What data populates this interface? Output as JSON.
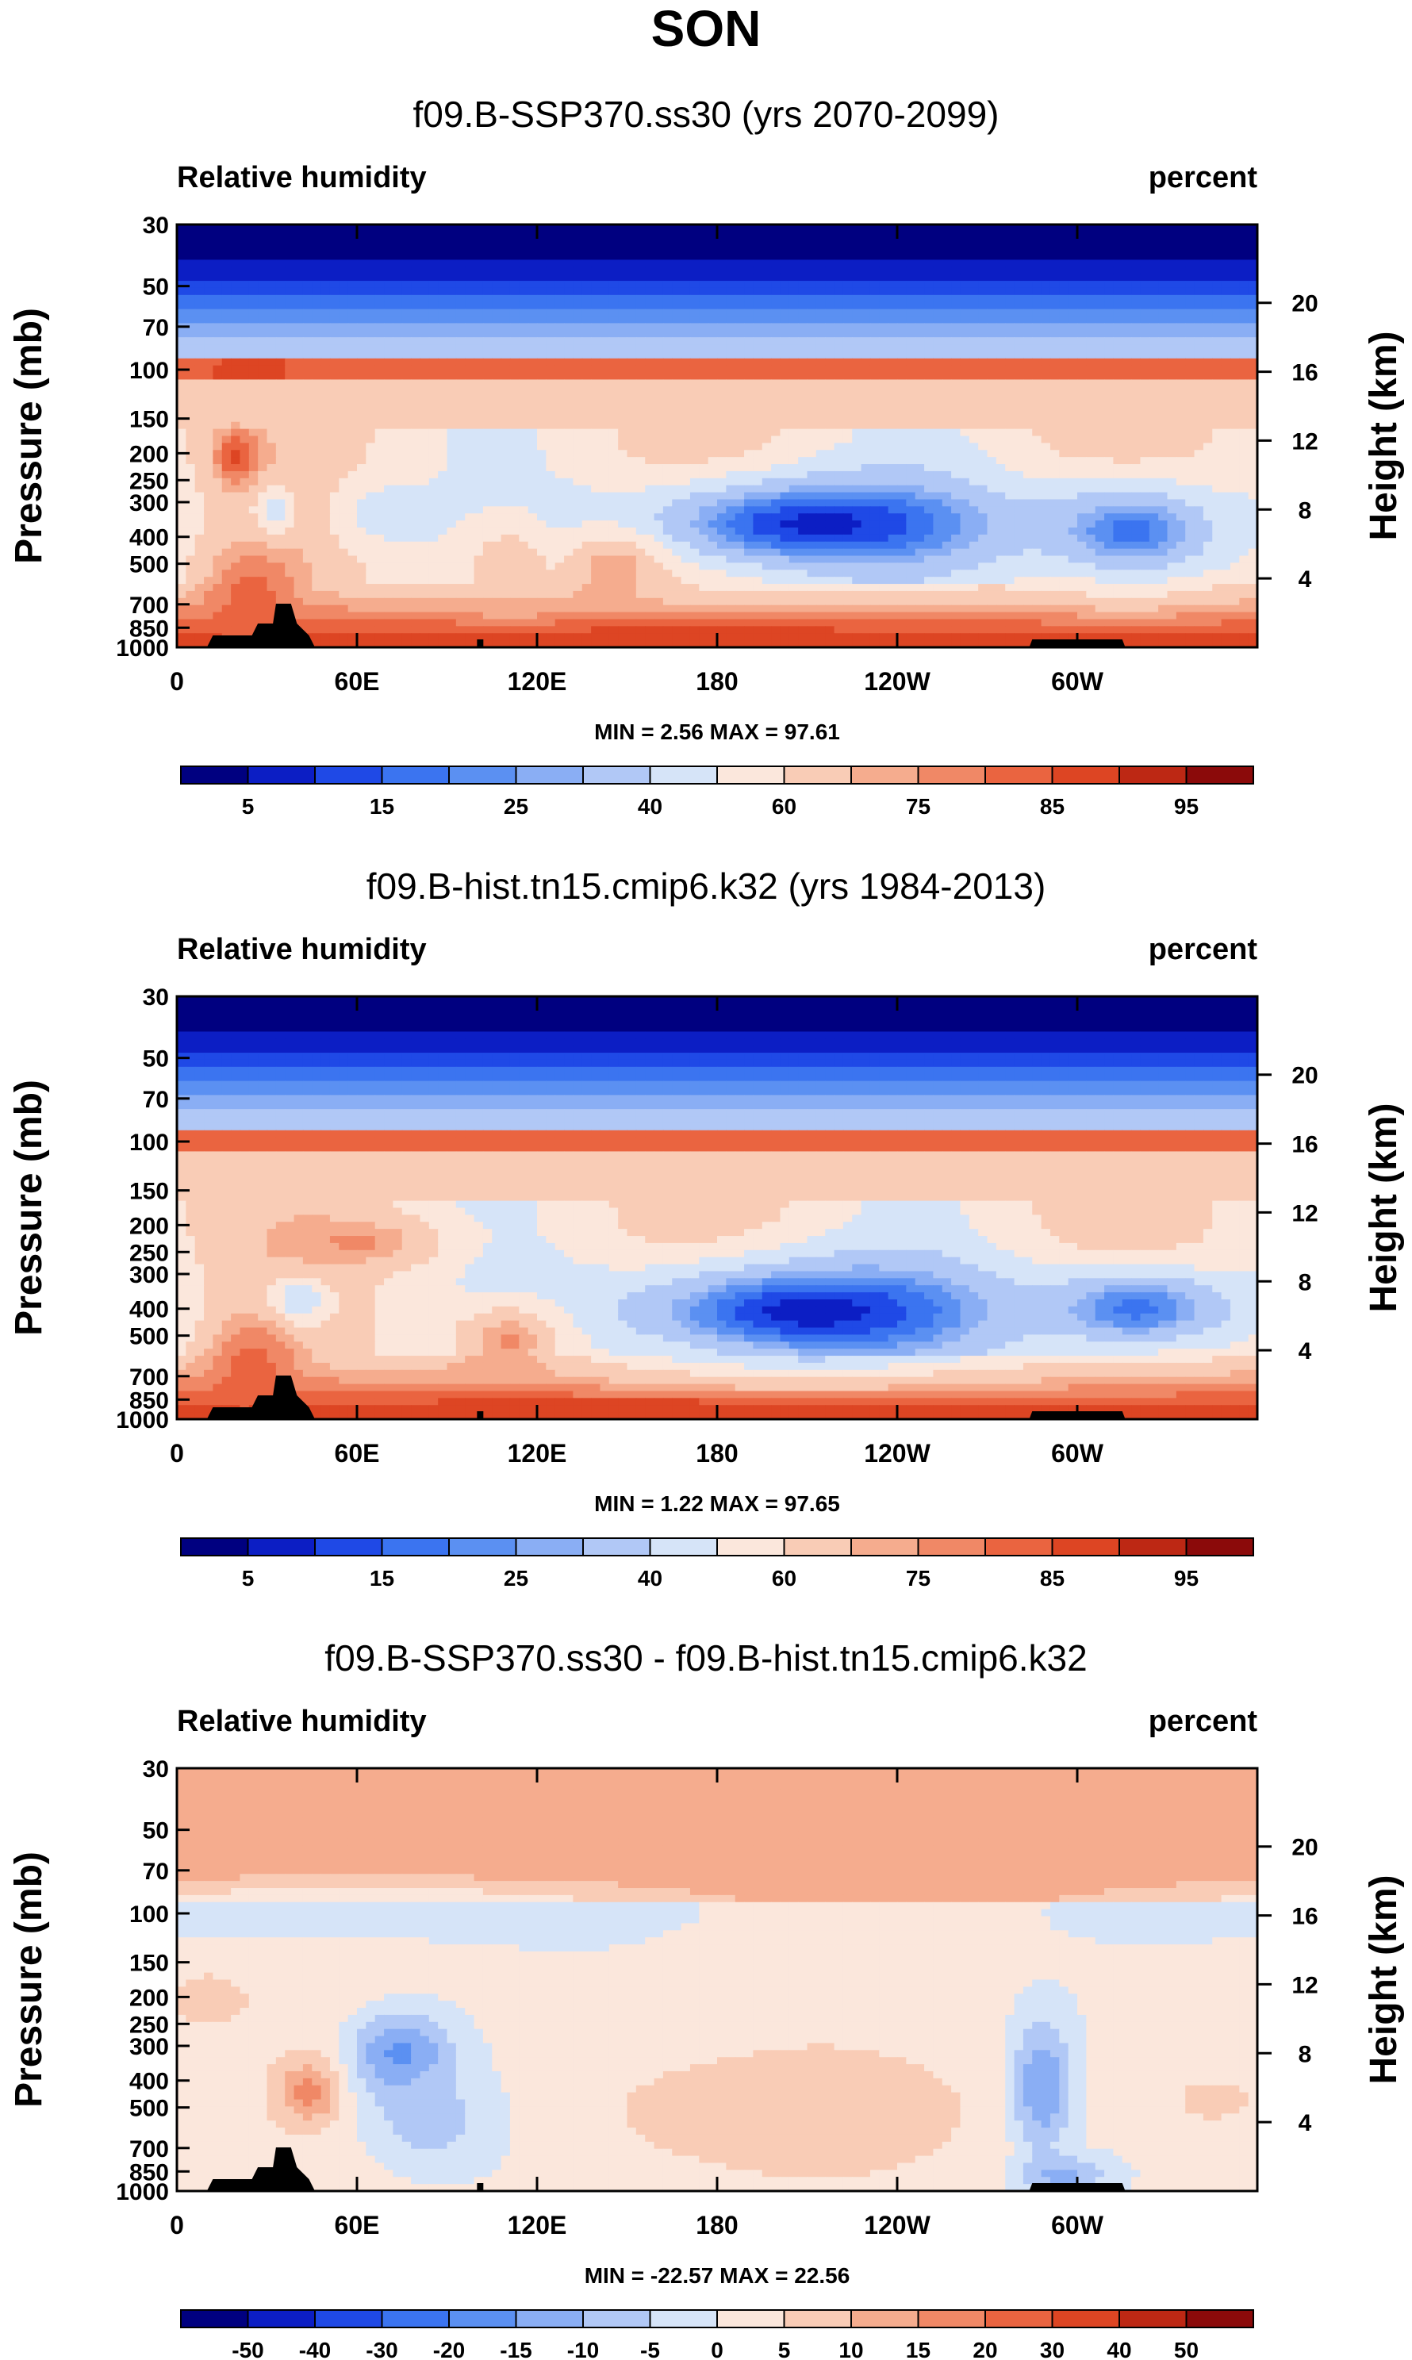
{
  "figure": {
    "title": "SON"
  },
  "colors": {
    "abs_scale": [
      "#000080",
      "#0c1ec4",
      "#1f49e6",
      "#3b74f0",
      "#5b90f2",
      "#8aaef4",
      "#b1c8f6",
      "#d6e4f8",
      "#fbe7dc",
      "#f9ccb6",
      "#f5ac8e",
      "#f08866",
      "#ea6440",
      "#dd4523",
      "#bd2814",
      "#8b0a0a"
    ],
    "diff_scale": [
      "#000080",
      "#0c1ec4",
      "#1f49e6",
      "#3b74f0",
      "#5b90f2",
      "#8aaef4",
      "#b1c8f6",
      "#d6e4f8",
      "#fbe7dc",
      "#f9ccb6",
      "#f5ac8e",
      "#f08866",
      "#ea6440",
      "#dd4523",
      "#bd2814",
      "#8b0a0a"
    ],
    "topography": "#000000"
  },
  "chart_data": [
    {
      "type": "heatmap",
      "title": "f09.B-SSP370.ss30 (yrs 2070-2099)",
      "left_label": "Relative humidity",
      "right_label": "percent",
      "ylabel": "Pressure (mb)",
      "y2label": "Height (km)",
      "xlabel": "",
      "x_ticks": [
        "0",
        "60E",
        "120E",
        "180",
        "120W",
        "60W"
      ],
      "x_tick_values": [
        0,
        60,
        120,
        180,
        240,
        300
      ],
      "xlim": [
        0,
        360
      ],
      "y_ticks": [
        "30",
        "50",
        "70",
        "100",
        "150",
        "200",
        "250",
        "300",
        "400",
        "500",
        "700",
        "850",
        "1000"
      ],
      "y_tick_values": [
        30,
        50,
        70,
        100,
        150,
        200,
        250,
        300,
        400,
        500,
        700,
        850,
        1000
      ],
      "ylim": [
        1000,
        30
      ],
      "y2_ticks": [
        "20",
        "16",
        "12",
        "8",
        "4"
      ],
      "y2_tick_values": [
        20,
        16,
        12,
        8,
        4
      ],
      "min_max_text": "MIN =   2.56  MAX =  97.61",
      "min": 2.56,
      "max": 97.61,
      "colorbar_labels": [
        "5",
        "15",
        "25",
        "40",
        "60",
        "75",
        "85",
        "95"
      ],
      "colorbar_levels": [
        5,
        10,
        15,
        20,
        25,
        30,
        40,
        50,
        60,
        70,
        75,
        80,
        85,
        90,
        95
      ],
      "features": [
        {
          "lon": 215,
          "p": 360,
          "value": 8,
          "lon_w": 46,
          "p_w": 120
        },
        {
          "lon": 318,
          "p": 380,
          "value": 18,
          "lon_w": 22,
          "p_w": 130
        },
        {
          "lon": 70,
          "p": 330,
          "value": 45,
          "lon_w": 12,
          "p_w": 80
        },
        {
          "lon": 32,
          "p": 330,
          "value": 42,
          "lon_w": 5,
          "p_w": 60
        },
        {
          "lon": 25,
          "p": 650,
          "value": 82,
          "lon_w": 12,
          "p_w": 250
        },
        {
          "lon": 20,
          "p": 205,
          "value": 86,
          "lon_w": 6,
          "p_w": 40
        },
        {
          "lon": 145,
          "p": 520,
          "value": 75,
          "lon_w": 12,
          "p_w": 120
        },
        {
          "lon": 110,
          "p": 550,
          "value": 70,
          "lon_w": 10,
          "p_w": 200
        },
        {
          "lon": 180,
          "p": 930,
          "value": 88,
          "lon_w": 90,
          "p_w": 60
        }
      ]
    },
    {
      "type": "heatmap",
      "title": "f09.B-hist.tn15.cmip6.k32 (yrs 1984-2013)",
      "left_label": "Relative humidity",
      "right_label": "percent",
      "ylabel": "Pressure (mb)",
      "y2label": "Height (km)",
      "xlabel": "",
      "x_ticks": [
        "0",
        "60E",
        "120E",
        "180",
        "120W",
        "60W"
      ],
      "x_tick_values": [
        0,
        60,
        120,
        180,
        240,
        300
      ],
      "xlim": [
        0,
        360
      ],
      "y_ticks": [
        "30",
        "50",
        "70",
        "100",
        "150",
        "200",
        "250",
        "300",
        "400",
        "500",
        "700",
        "850",
        "1000"
      ],
      "y_tick_values": [
        30,
        50,
        70,
        100,
        150,
        200,
        250,
        300,
        400,
        500,
        700,
        850,
        1000
      ],
      "ylim": [
        1000,
        30
      ],
      "y2_ticks": [
        "20",
        "16",
        "12",
        "8",
        "4"
      ],
      "y2_tick_values": [
        20,
        16,
        12,
        8,
        4
      ],
      "min_max_text": "MIN =   1.22  MAX =  97.65",
      "min": 1.22,
      "max": 97.65,
      "colorbar_labels": [
        "5",
        "15",
        "25",
        "40",
        "60",
        "75",
        "85",
        "95"
      ],
      "colorbar_levels": [
        5,
        10,
        15,
        20,
        25,
        30,
        40,
        50,
        60,
        70,
        75,
        80,
        85,
        90,
        95
      ],
      "features": [
        {
          "lon": 212,
          "p": 410,
          "value": 7,
          "lon_w": 48,
          "p_w": 150
        },
        {
          "lon": 320,
          "p": 400,
          "value": 18,
          "lon_w": 24,
          "p_w": 110
        },
        {
          "lon": 40,
          "p": 380,
          "value": 35,
          "lon_w": 7,
          "p_w": 60
        },
        {
          "lon": 25,
          "p": 650,
          "value": 82,
          "lon_w": 12,
          "p_w": 250
        },
        {
          "lon": 110,
          "p": 520,
          "value": 76,
          "lon_w": 14,
          "p_w": 130
        },
        {
          "lon": 60,
          "p": 230,
          "value": 76,
          "lon_w": 20,
          "p_w": 40
        },
        {
          "lon": 180,
          "p": 930,
          "value": 90,
          "lon_w": 90,
          "p_w": 60
        }
      ]
    },
    {
      "type": "heatmap",
      "title": "f09.B-SSP370.ss30 - f09.B-hist.tn15.cmip6.k32",
      "left_label": "Relative humidity",
      "right_label": "percent",
      "ylabel": "Pressure (mb)",
      "y2label": "Height (km)",
      "xlabel": "",
      "x_ticks": [
        "0",
        "60E",
        "120E",
        "180",
        "120W",
        "60W"
      ],
      "x_tick_values": [
        0,
        60,
        120,
        180,
        240,
        300
      ],
      "xlim": [
        0,
        360
      ],
      "y_ticks": [
        "30",
        "50",
        "70",
        "100",
        "150",
        "200",
        "250",
        "300",
        "400",
        "500",
        "700",
        "850",
        "1000"
      ],
      "y_tick_values": [
        30,
        50,
        70,
        100,
        150,
        200,
        250,
        300,
        400,
        500,
        700,
        850,
        1000
      ],
      "ylim": [
        1000,
        30
      ],
      "y2_ticks": [
        "20",
        "16",
        "12",
        "8",
        "4"
      ],
      "y2_tick_values": [
        20,
        16,
        12,
        8,
        4
      ],
      "min_max_text": "MIN = -22.57  MAX =  22.56",
      "min": -22.57,
      "max": 22.56,
      "colorbar_labels": [
        "-50",
        "-40",
        "-30",
        "-20",
        "-15",
        "-10",
        "-5",
        "0",
        "5",
        "10",
        "15",
        "20",
        "30",
        "40",
        "50"
      ],
      "colorbar_levels": [
        -50,
        -40,
        -30,
        -20,
        -15,
        -10,
        -5,
        0,
        5,
        10,
        15,
        20,
        30,
        40,
        50
      ],
      "features": [
        {
          "lon": 45,
          "p": 440,
          "value": 18,
          "lon_w": 8,
          "p_w": 90
        },
        {
          "lon": 75,
          "p": 330,
          "value": -18,
          "lon_w": 12,
          "p_w": 100
        },
        {
          "lon": 85,
          "p": 560,
          "value": -8,
          "lon_w": 16,
          "p_w": 200
        },
        {
          "lon": 200,
          "p": 520,
          "value": 9,
          "lon_w": 45,
          "p_w": 220
        },
        {
          "lon": 288,
          "p": 420,
          "value": -15,
          "lon_w": 7,
          "p_w": 200
        },
        {
          "lon": 295,
          "p": 880,
          "value": -12,
          "lon_w": 10,
          "p_w": 100
        },
        {
          "lon": 345,
          "p": 470,
          "value": 8,
          "lon_w": 10,
          "p_w": 70
        },
        {
          "lon": 60,
          "p": 100,
          "value": -3,
          "lon_w": 80,
          "p_w": 20
        },
        {
          "lon": 10,
          "p": 205,
          "value": 10,
          "lon_w": 8,
          "p_w": 30
        }
      ]
    }
  ]
}
